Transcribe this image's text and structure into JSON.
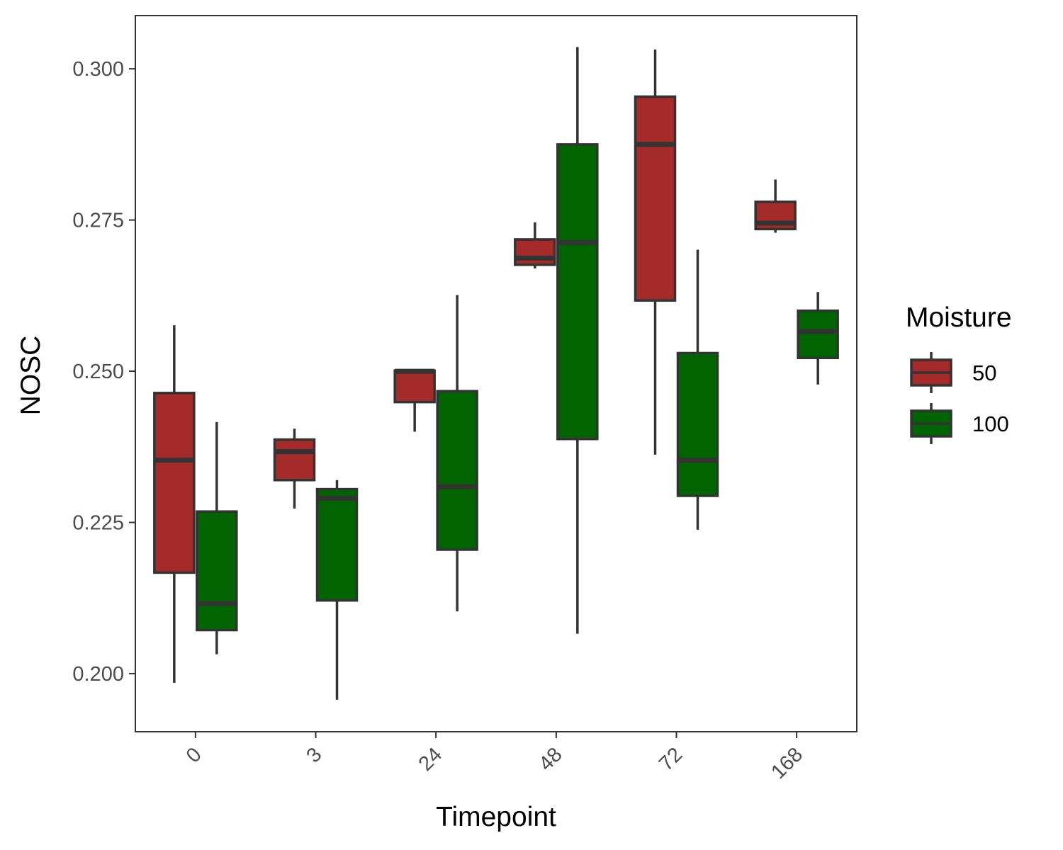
{
  "chart_data": {
    "type": "boxplot",
    "xlabel": "Timepoint",
    "ylabel": "NOSC",
    "categories": [
      "0",
      "3",
      "24",
      "48",
      "72",
      "168"
    ],
    "ylim": [
      0.1904,
      0.3088
    ],
    "yticks": [
      0.2,
      0.225,
      0.25,
      0.275,
      0.3
    ],
    "ytick_labels": [
      "0.200",
      "0.225",
      "0.250",
      "0.275",
      "0.300"
    ],
    "grid": false,
    "legend": {
      "title": "Moisture",
      "position": "right"
    },
    "series": [
      {
        "name": "50",
        "color": "#A52A2A",
        "boxes": [
          {
            "min": 0.1985,
            "q1": 0.2167,
            "median": 0.2353,
            "q3": 0.2464,
            "max": 0.2576
          },
          {
            "min": 0.2273,
            "q1": 0.232,
            "median": 0.2367,
            "q3": 0.2387,
            "max": 0.2405
          },
          {
            "min": 0.24,
            "q1": 0.2449,
            "median": 0.25,
            "q3": 0.2501,
            "max": 0.2501
          },
          {
            "min": 0.267,
            "q1": 0.2676,
            "median": 0.2687,
            "q3": 0.2718,
            "max": 0.2746
          },
          {
            "min": 0.2362,
            "q1": 0.2617,
            "median": 0.2875,
            "q3": 0.2954,
            "max": 0.3032
          },
          {
            "min": 0.2729,
            "q1": 0.2735,
            "median": 0.2745,
            "q3": 0.278,
            "max": 0.2817
          }
        ]
      },
      {
        "name": "100",
        "color": "#006400",
        "boxes": [
          {
            "min": 0.2032,
            "q1": 0.2072,
            "median": 0.2116,
            "q3": 0.2268,
            "max": 0.2416
          },
          {
            "min": 0.1957,
            "q1": 0.2121,
            "median": 0.229,
            "q3": 0.2305,
            "max": 0.232
          },
          {
            "min": 0.2103,
            "q1": 0.2205,
            "median": 0.2309,
            "q3": 0.2467,
            "max": 0.2626
          },
          {
            "min": 0.2066,
            "q1": 0.2388,
            "median": 0.2713,
            "q3": 0.2875,
            "max": 0.3036
          },
          {
            "min": 0.2238,
            "q1": 0.2294,
            "median": 0.2353,
            "q3": 0.253,
            "max": 0.2701
          },
          {
            "min": 0.2478,
            "q1": 0.2522,
            "median": 0.2566,
            "q3": 0.26,
            "max": 0.2631
          }
        ]
      }
    ]
  }
}
